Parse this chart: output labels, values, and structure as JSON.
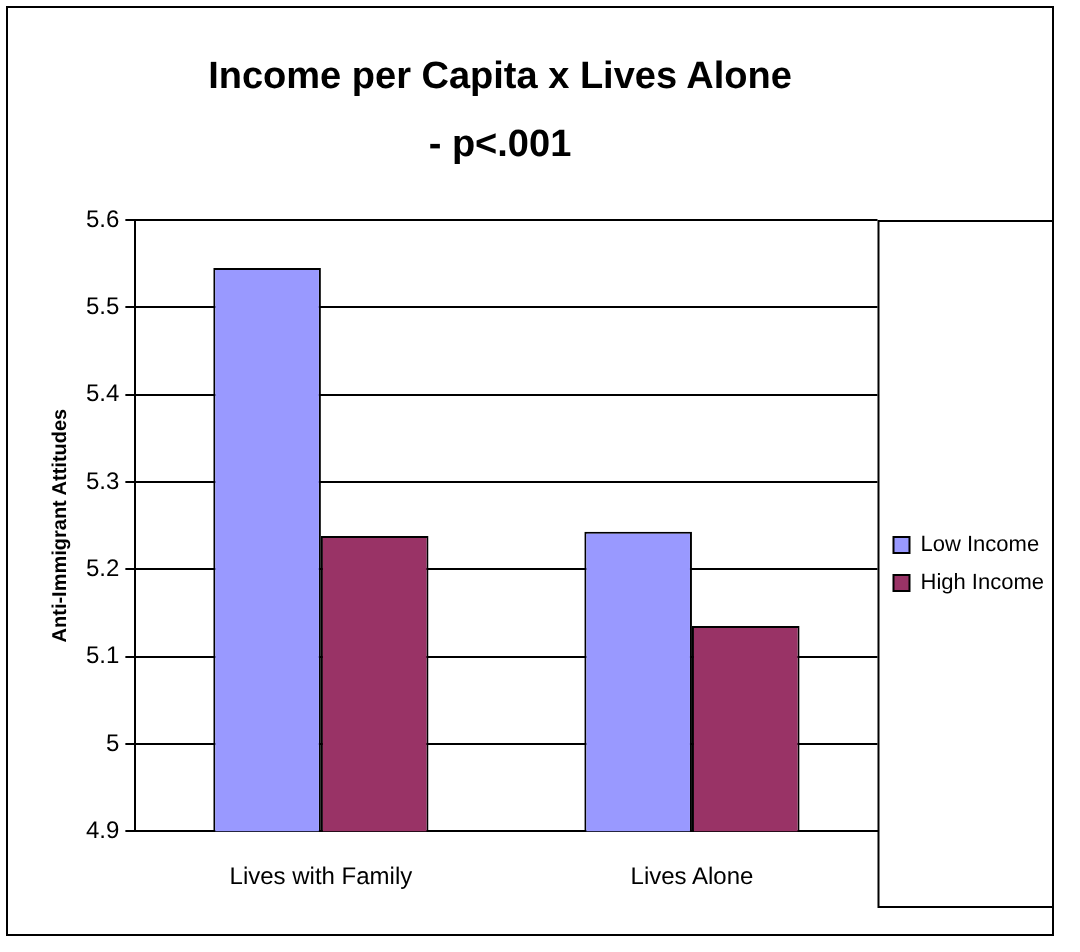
{
  "chart_data": {
    "type": "bar",
    "title": "Income per Capita x Lives Alone - p<.001",
    "ylabel": "Anti-Immigrant Attitudes",
    "categories": [
      "Lives with Family",
      "Lives Alone"
    ],
    "series": [
      {
        "name": "Low Income",
        "color": "#9999ff",
        "values": [
          5.545,
          5.243
        ]
      },
      {
        "name": "High Income",
        "color": "#993366",
        "values": [
          5.238,
          5.135
        ]
      }
    ],
    "ylim": [
      4.9,
      5.6
    ],
    "yticks": [
      4.9,
      5,
      5.1,
      5.2,
      5.3,
      5.4,
      5.5,
      5.6
    ],
    "grid": "y",
    "legend": "right"
  }
}
